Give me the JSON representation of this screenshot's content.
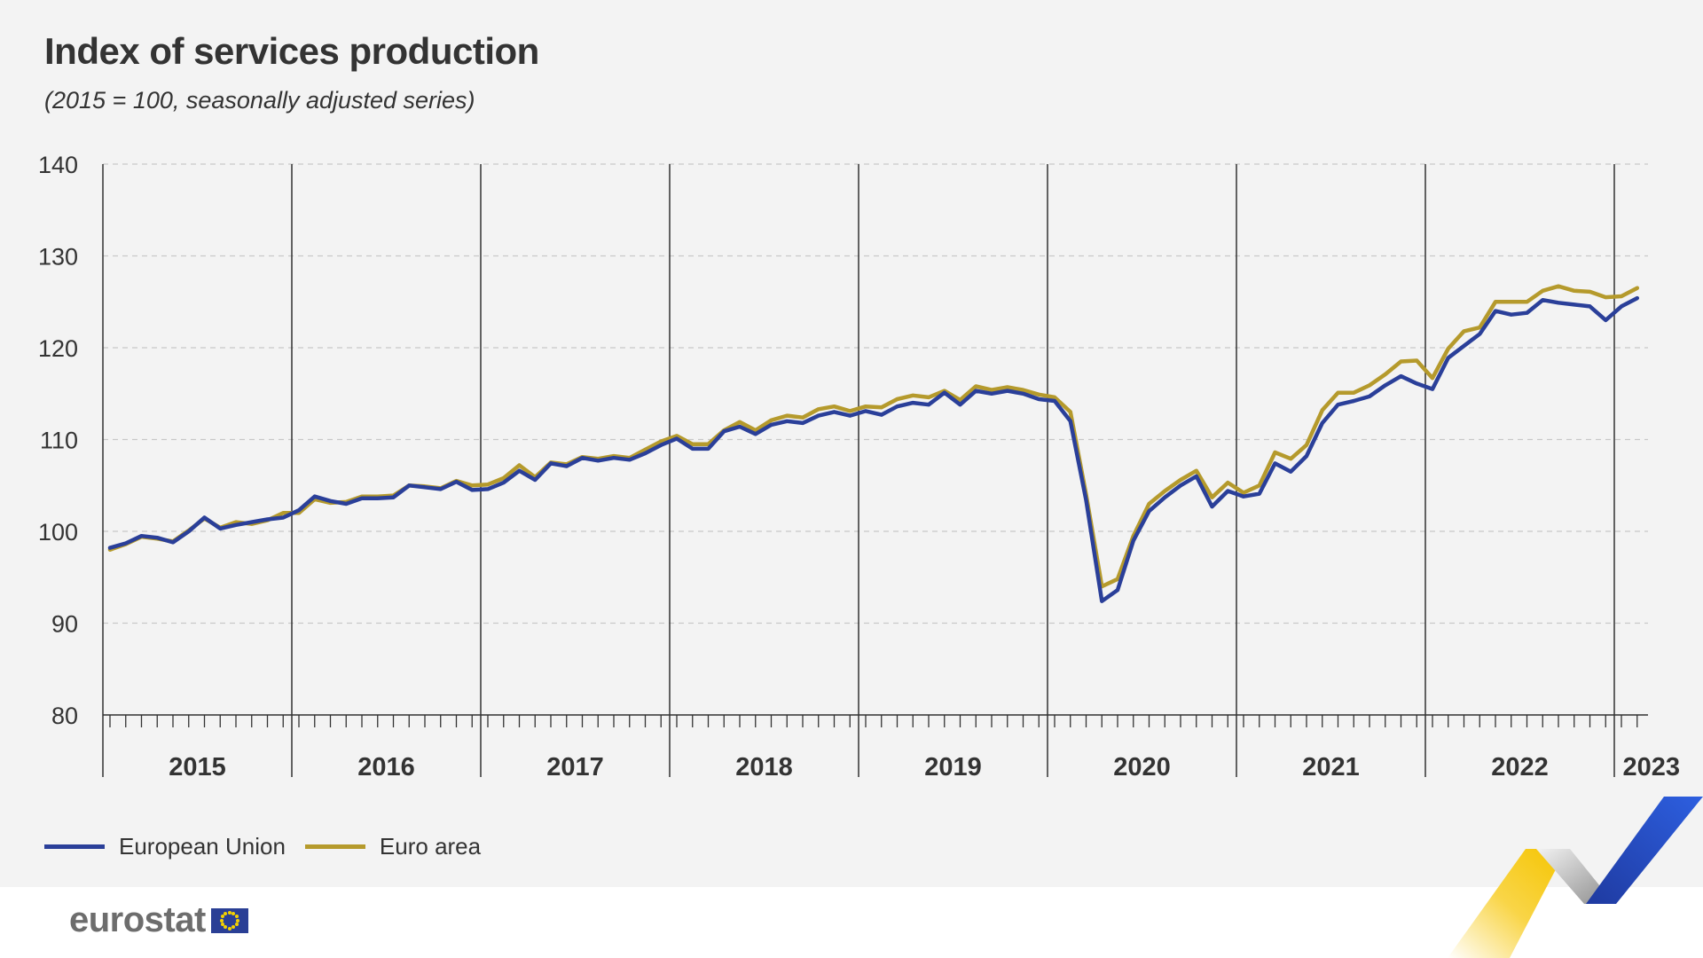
{
  "title": "Index of services production",
  "subtitle": "(2015 = 100, seasonally adjusted series)",
  "logo_text": "eurostat",
  "colors": {
    "eu": "#2a3f99",
    "ea": "#b59a2c",
    "grid": "#c8c8c8",
    "axis": "#333333",
    "background": "#f3f3f3"
  },
  "chart_data": {
    "type": "line",
    "title": "Index of services production",
    "subtitle": "(2015 = 100, seasonally adjusted series)",
    "xlabel": "",
    "ylabel": "",
    "ylim": [
      80,
      140
    ],
    "yticks": [
      80,
      90,
      100,
      110,
      120,
      130,
      140
    ],
    "grid": true,
    "legend_position": "bottom-left",
    "year_labels": [
      "2015",
      "2016",
      "2017",
      "2018",
      "2019",
      "2020",
      "2021",
      "2022",
      "2023"
    ],
    "x_start": "2015-01",
    "frequency": "monthly",
    "series": [
      {
        "name": "European Union",
        "color": "#2a3f99",
        "values": [
          98.2,
          98.7,
          99.5,
          99.3,
          98.8,
          100.0,
          101.5,
          100.3,
          100.7,
          101.0,
          101.3,
          101.5,
          102.3,
          103.8,
          103.3,
          103.0,
          103.6,
          103.6,
          103.7,
          105.0,
          104.8,
          104.6,
          105.4,
          104.5,
          104.6,
          105.3,
          106.6,
          105.6,
          107.4,
          107.1,
          108.0,
          107.7,
          108.0,
          107.8,
          108.5,
          109.4,
          110.1,
          109.0,
          109.0,
          110.9,
          111.4,
          110.6,
          111.6,
          112.0,
          111.8,
          112.6,
          113.0,
          112.6,
          113.1,
          112.7,
          113.6,
          114.0,
          113.8,
          115.1,
          113.8,
          115.3,
          115.0,
          115.3,
          115.0,
          114.4,
          114.2,
          112.0,
          103.4,
          92.4,
          93.6,
          99.0,
          102.2,
          103.7,
          105.0,
          106.0,
          102.7,
          104.4,
          103.8,
          104.1,
          107.4,
          106.5,
          108.2,
          111.8,
          113.8,
          114.2,
          114.7,
          115.9,
          116.9,
          116.1,
          115.5,
          118.9,
          120.2,
          121.5,
          124.0,
          123.6,
          123.8,
          125.2,
          124.9,
          124.7,
          124.5,
          123.0,
          124.5,
          125.4
        ]
      },
      {
        "name": "Euro area",
        "color": "#b59a2c",
        "values": [
          98.0,
          98.6,
          99.4,
          99.2,
          98.9,
          100.1,
          101.4,
          100.4,
          101.0,
          100.8,
          101.2,
          102.0,
          102.0,
          103.5,
          103.1,
          103.2,
          103.8,
          103.8,
          103.9,
          105.0,
          104.9,
          104.7,
          105.5,
          105.0,
          105.1,
          105.8,
          107.2,
          105.9,
          107.5,
          107.3,
          108.1,
          107.9,
          108.2,
          108.0,
          108.9,
          109.8,
          110.4,
          109.5,
          109.5,
          111.0,
          111.9,
          111.0,
          112.1,
          112.6,
          112.4,
          113.3,
          113.6,
          113.1,
          113.6,
          113.5,
          114.4,
          114.8,
          114.6,
          115.3,
          114.3,
          115.8,
          115.4,
          115.7,
          115.4,
          114.9,
          114.6,
          113.0,
          104.0,
          94.0,
          94.8,
          99.5,
          103.0,
          104.4,
          105.6,
          106.6,
          103.7,
          105.3,
          104.2,
          105.0,
          108.6,
          107.9,
          109.4,
          113.2,
          115.1,
          115.1,
          115.9,
          117.1,
          118.5,
          118.6,
          116.7,
          119.9,
          121.8,
          122.2,
          125.0,
          125.0,
          125.0,
          126.2,
          126.7,
          126.2,
          126.1,
          125.5,
          125.6,
          126.5
        ]
      }
    ]
  }
}
